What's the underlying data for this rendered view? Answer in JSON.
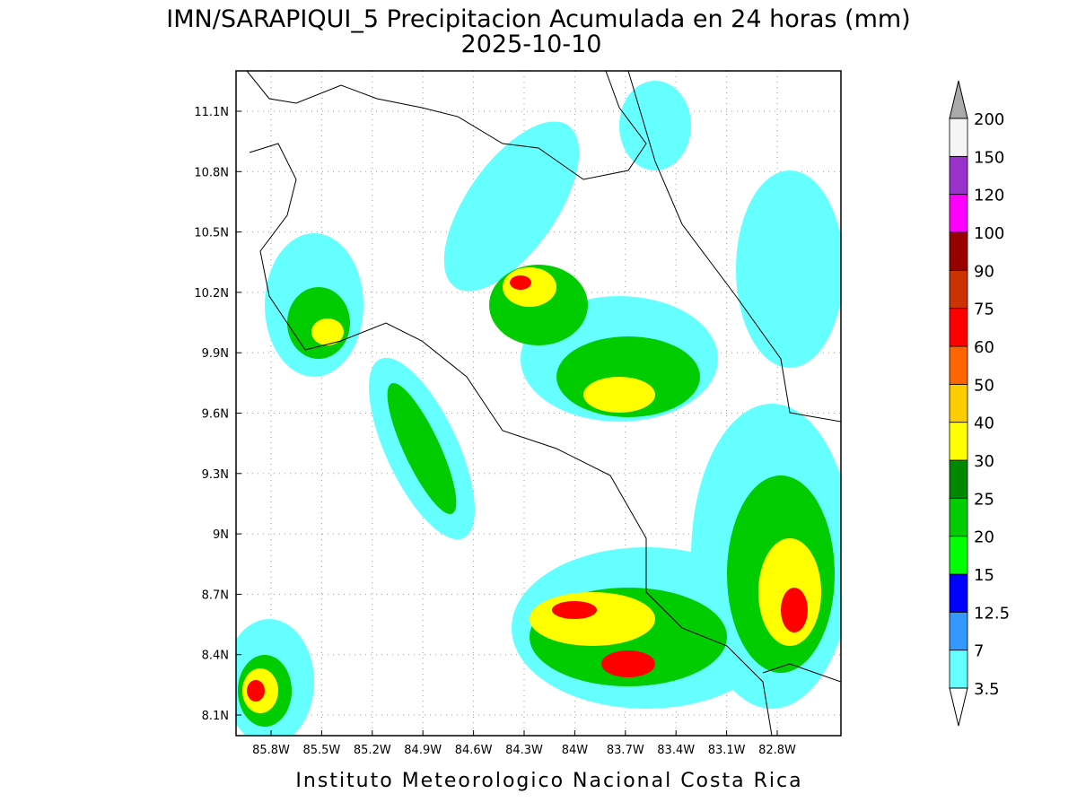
{
  "header": {
    "title": "IMN/SARAPIQUI_5 Precipitacion Acumulada en 24 horas (mm)",
    "date": "2025-10-10"
  },
  "map": {
    "lat_ticks": [
      "11.1N",
      "10.8N",
      "10.5N",
      "10.2N",
      "9.9N",
      "9.6N",
      "9.3N",
      "9N",
      "8.7N",
      "8.4N",
      "8.1N"
    ],
    "lon_ticks": [
      "85.8W",
      "85.5W",
      "85.2W",
      "84.9W",
      "84.6W",
      "84.3W",
      "84W",
      "83.7W",
      "83.4W",
      "83.1W",
      "82.8W"
    ]
  },
  "colorbar": {
    "levels": [
      "3.5",
      "7",
      "12.5",
      "15",
      "20",
      "25",
      "30",
      "40",
      "50",
      "60",
      "75",
      "90",
      "100",
      "120",
      "150",
      "200"
    ],
    "colors": [
      "#66ffff",
      "#3399ff",
      "#0000ff",
      "#00ff00",
      "#00cc00",
      "#008800",
      "#ffff00",
      "#ffcc00",
      "#ff6600",
      "#ff0000",
      "#cc3300",
      "#990000",
      "#ff00ff",
      "#9933cc",
      "#f5f5f5"
    ],
    "under_color": "#ffffff",
    "over_color": "#aaaaaa"
  },
  "footer": "Instituto Meteorologico Nacional Costa Rica"
}
